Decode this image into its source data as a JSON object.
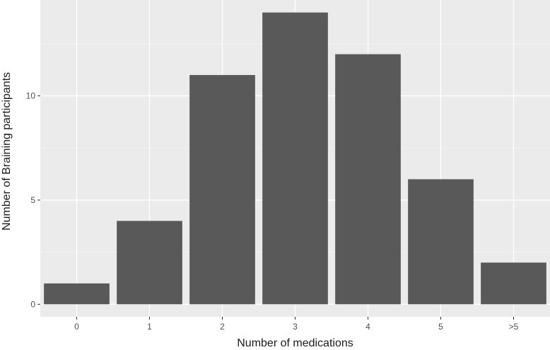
{
  "chart_data": {
    "type": "bar",
    "categories": [
      "0",
      "1",
      "2",
      "3",
      "4",
      "5",
      ">5"
    ],
    "values": [
      1,
      4,
      11,
      14,
      12,
      6,
      2
    ],
    "xlabel": "Number of medications",
    "ylabel": "Number of Braining participants",
    "ylim": [
      -0.6,
      14.6
    ],
    "yticks": [
      0,
      5,
      10
    ],
    "ytick_labels": [
      "0",
      "5",
      "10"
    ],
    "grid": true,
    "colors": {
      "panel": "#ebebeb",
      "grid_major": "#ffffff",
      "bar": "#595959",
      "tick": "#333333"
    }
  }
}
